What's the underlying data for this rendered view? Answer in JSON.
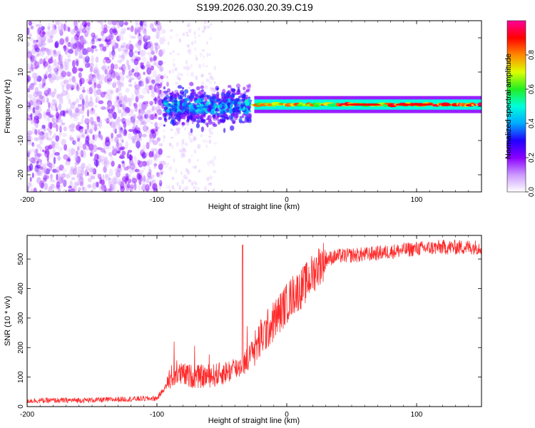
{
  "title": "S199.2026.030.20.39.C19",
  "colors": {
    "line": "#ff2a2a",
    "axis": "#000000",
    "colormap": [
      "#ffffff",
      "#cc99ff",
      "#8a00ff",
      "#2000ff",
      "#00aaff",
      "#00ffdd",
      "#22ee22",
      "#ddff00",
      "#ff8800",
      "#ff0000",
      "#ff0099"
    ]
  },
  "chart_data": [
    {
      "type": "heatmap",
      "title": "S199.2026.030.20.39.C19",
      "xlabel": "Height of straight line (km)",
      "ylabel": "Frequency (Hz)",
      "xlim": [
        -200,
        150
      ],
      "ylim": [
        -25,
        25
      ],
      "xticks": [
        -200,
        -100,
        0,
        100
      ],
      "xtick_labels": [
        "-200",
        "-100",
        "0",
        "100"
      ],
      "yticks": [
        -20,
        -10,
        0,
        10,
        20
      ],
      "ytick_labels": [
        "-20",
        "-10",
        "0",
        "10",
        "20"
      ],
      "colorbar": {
        "label": "Normalized spectral amplitude",
        "range": [
          0,
          1
        ],
        "ticks": [
          0.0,
          0.2,
          0.4,
          0.6,
          0.8
        ],
        "tick_labels": [
          "0.0",
          "0.2",
          "0.4",
          "0.6",
          "0.8"
        ]
      },
      "regions": [
        {
          "name": "noise",
          "x_range": [
            -200,
            -95
          ],
          "y_range": [
            -25,
            25
          ],
          "amplitude": 0.15
        },
        {
          "name": "onset",
          "x_range": [
            -95,
            -28
          ],
          "y_range": [
            -8,
            7
          ],
          "amplitude": 0.3
        },
        {
          "name": "signal-band",
          "x_range": [
            -25,
            150
          ],
          "center_frequency": 0.5,
          "width_hz": 2.5,
          "amplitude": 0.9
        }
      ]
    },
    {
      "type": "line",
      "xlabel": "Height of straight line (km)",
      "ylabel": "SNR (10 * v/v)",
      "xlim": [
        -200,
        150
      ],
      "ylim": [
        0,
        580
      ],
      "xticks": [
        -200,
        -100,
        0,
        100
      ],
      "xtick_labels": [
        "-200",
        "-100",
        "0",
        "100"
      ],
      "yticks": [
        0,
        100,
        200,
        300,
        400,
        500
      ],
      "ytick_labels": [
        "0",
        "100",
        "200",
        "300",
        "400",
        "500"
      ],
      "series": [
        {
          "name": "SNR",
          "x": [
            -200,
            -150,
            -100,
            -91,
            -85,
            -70,
            -55,
            -40,
            -33,
            -28,
            -25,
            -20,
            -15,
            -10,
            -5,
            0,
            5,
            10,
            15,
            20,
            25,
            30,
            40,
            60,
            80,
            100,
            120,
            150
          ],
          "y": [
            20,
            22,
            28,
            80,
            95,
            85,
            90,
            110,
            130,
            160,
            190,
            230,
            260,
            290,
            320,
            350,
            380,
            395,
            420,
            450,
            480,
            500,
            510,
            515,
            525,
            535,
            540,
            540
          ]
        }
      ]
    }
  ]
}
